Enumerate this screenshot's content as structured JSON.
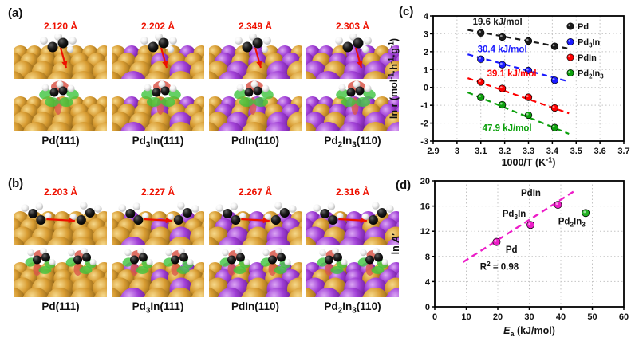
{
  "panels": {
    "a": {
      "label": "(a)",
      "columns": [
        {
          "distance": "2.120 Å",
          "name": "Pd(111)",
          "surface": "Pd"
        },
        {
          "distance": "2.202 Å",
          "name": "Pd_{3}In(111)",
          "surface": "Pd3In"
        },
        {
          "distance": "2.349 Å",
          "name": "PdIn(110)",
          "surface": "PdIn"
        },
        {
          "distance": "2.303 Å",
          "name": "Pd_{2}In_{3}(110)",
          "surface": "Pd2In3"
        }
      ]
    },
    "b": {
      "label": "(b)",
      "columns": [
        {
          "distance": "2.203 Å",
          "name": "Pd(111)",
          "surface": "Pd"
        },
        {
          "distance": "2.227 Å",
          "name": "Pd_{3}In(111)",
          "surface": "Pd3In"
        },
        {
          "distance": "2.267 Å",
          "name": "PdIn(110)",
          "surface": "PdIn"
        },
        {
          "distance": "2.316 Å",
          "name": "Pd_{2}In_{3}(110)",
          "surface": "Pd2In3"
        }
      ]
    }
  },
  "colors": {
    "red_annotation": "#ee1100",
    "gold_atom": "#d89c32",
    "purple_atom": "#a03fd6",
    "carbon_atom": "#1d1d1d",
    "hydrogen_atom": "#f5f5f5",
    "isosurface_green": "#3fc43f",
    "isosurface_red": "#d9574a",
    "magenta": "#ed1ec8"
  },
  "chart_data": [
    {
      "id": "c",
      "type": "scatter",
      "panel_label": "(c)",
      "xlabel": "1000/T (K^{-1})",
      "ylabel": "ln r (mol^{-1}·h^{-1}·g^{-1})",
      "xlim": [
        2.9,
        3.7
      ],
      "ylim": [
        -3,
        4
      ],
      "xticks": [
        2.9,
        3.0,
        3.1,
        3.2,
        3.3,
        3.4,
        3.5,
        3.6,
        3.7
      ],
      "xtick_labels": [
        "2.9",
        "3",
        "3.1",
        "3.2",
        "3.3",
        "3.4",
        "3.5",
        "3.6",
        "3.7"
      ],
      "yticks": [
        -3,
        -2,
        -1,
        0,
        1,
        2,
        3,
        4
      ],
      "grid": true,
      "legend_position": "top-right",
      "x": [
        3.1,
        3.19,
        3.3,
        3.41
      ],
      "series": [
        {
          "name": "Pd",
          "color": "#1a1a1a",
          "values": [
            3.05,
            2.82,
            2.6,
            2.3
          ],
          "fit_line": {
            "x": [
              3.045,
              3.47
            ],
            "y": [
              3.22,
              2.17
            ]
          },
          "ea_label": "19.6 kJ/mol",
          "ea_label_xy": [
            3.17,
            3.5
          ]
        },
        {
          "name": "Pd_{3}In",
          "color": "#1b1bff",
          "values": [
            1.58,
            1.27,
            0.95,
            0.4
          ],
          "fit_line": {
            "x": [
              3.045,
              3.47
            ],
            "y": [
              1.85,
              0.32
            ]
          },
          "ea_label": "30.4 kJ/mol",
          "ea_label_xy": [
            3.19,
            1.98
          ]
        },
        {
          "name": "PdIn",
          "color": "#fe0000",
          "values": [
            0.3,
            -0.06,
            -0.55,
            -1.15
          ],
          "fit_line": {
            "x": [
              3.045,
              3.47
            ],
            "y": [
              0.52,
              -1.45
            ]
          },
          "ea_label": "39.1 kJ/mol",
          "ea_label_xy": [
            3.23,
            0.62
          ]
        },
        {
          "name": "Pd_{2}In_{3}",
          "color": "#0ca00c",
          "values": [
            -0.55,
            -0.97,
            -1.55,
            -2.25
          ],
          "fit_line": {
            "x": [
              3.045,
              3.47
            ],
            "y": [
              -0.28,
              -2.6
            ]
          },
          "ea_label": "47.9 kJ/mol",
          "ea_label_xy": [
            3.21,
            -2.45
          ]
        }
      ]
    },
    {
      "id": "d",
      "type": "scatter",
      "panel_label": "(d)",
      "xlabel": "*E*_{a} (kJ/mol)",
      "ylabel": "ln *A*′",
      "xlim": [
        0,
        60
      ],
      "ylim": [
        0,
        20
      ],
      "xticks": [
        0,
        10,
        20,
        30,
        40,
        50,
        60
      ],
      "yticks": [
        0,
        4,
        8,
        12,
        16,
        20
      ],
      "grid": true,
      "points": [
        {
          "name": "Pd",
          "x": 19.6,
          "y": 10.3,
          "color": "#ed1ec8",
          "label_xy": [
            22.5,
            8.6
          ],
          "label_anchor": "start"
        },
        {
          "name": "Pd_{3}In",
          "x": 30.4,
          "y": 13.0,
          "color": "#ed1ec8",
          "label_xy": [
            25.2,
            14.3
          ],
          "label_anchor": "middle"
        },
        {
          "name": "PdIn",
          "x": 39.1,
          "y": 16.2,
          "color": "#ed1ec8",
          "label_xy": [
            30.5,
            17.6
          ],
          "label_anchor": "middle"
        },
        {
          "name": "Pd_{2}In_{3}",
          "x": 47.9,
          "y": 14.9,
          "color": "#22b022",
          "label_xy": [
            43.5,
            13.1
          ],
          "label_anchor": "middle"
        }
      ],
      "trend_line": {
        "color": "#ed1ec8",
        "x": [
          9.0,
          45.0
        ],
        "y": [
          7.1,
          18.6
        ]
      },
      "annotation": {
        "text": "R^{2} = 0.98",
        "xy": [
          20.5,
          5.9
        ]
      }
    }
  ]
}
